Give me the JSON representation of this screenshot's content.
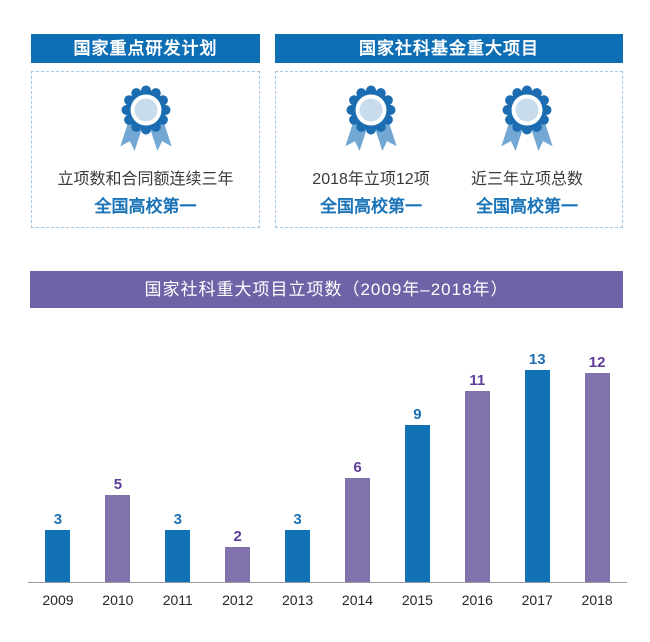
{
  "panels": [
    {
      "header": "国家重点研发计划",
      "items": [
        {
          "icon": "medal-icon",
          "line1": "立项数和合同额连续三年",
          "line2": "全国高校第一"
        }
      ]
    },
    {
      "header": "国家社科基金重大项目",
      "items": [
        {
          "icon": "medal-icon",
          "line1": "2018年立项12项",
          "line2": "全国高校第一"
        },
        {
          "icon": "medal-icon",
          "line1": "近三年立项总数",
          "line2": "全国高校第一"
        }
      ]
    }
  ],
  "chart": {
    "header": "国家社科重大项目立项数（2009年–2018年）"
  },
  "chart_data": {
    "type": "bar",
    "title": "国家社科重大项目立项数（2009年–2018年）",
    "categories": [
      "2009",
      "2010",
      "2011",
      "2012",
      "2013",
      "2014",
      "2015",
      "2016",
      "2017",
      "2018"
    ],
    "values": [
      3,
      5,
      3,
      2,
      3,
      6,
      9,
      11,
      13,
      12
    ],
    "xlabel": "",
    "ylabel": "",
    "ylim": [
      0,
      13.2
    ],
    "grid": false,
    "legend": "none",
    "data_labels": true,
    "bar_colors": [
      "#1272b5",
      "#8172ae",
      "#1272b5",
      "#8172ae",
      "#1272b5",
      "#8172ae",
      "#1272b5",
      "#8172ae",
      "#1272b5",
      "#8172ae"
    ],
    "label_colors": [
      "#1d6fb5",
      "#5e3d99",
      "#1d6fb5",
      "#5e3d99",
      "#1d6fb5",
      "#5e3d99",
      "#1d6fb5",
      "#5e3d99",
      "#1d6fb5",
      "#5e3d99"
    ]
  },
  "colors": {
    "header_blue": "#0f6fb4",
    "header_purple": "#6f62a7",
    "bar_blue": "#1272b5",
    "bar_purple": "#8172ae",
    "accent_text_blue": "#1b74b8",
    "dashed_border": "#a6c7e2",
    "medal_dark_blue": "#1b6cb1",
    "medal_light_blue": "#c9dcec",
    "medal_ribbon_blue": "#74a8d4"
  }
}
